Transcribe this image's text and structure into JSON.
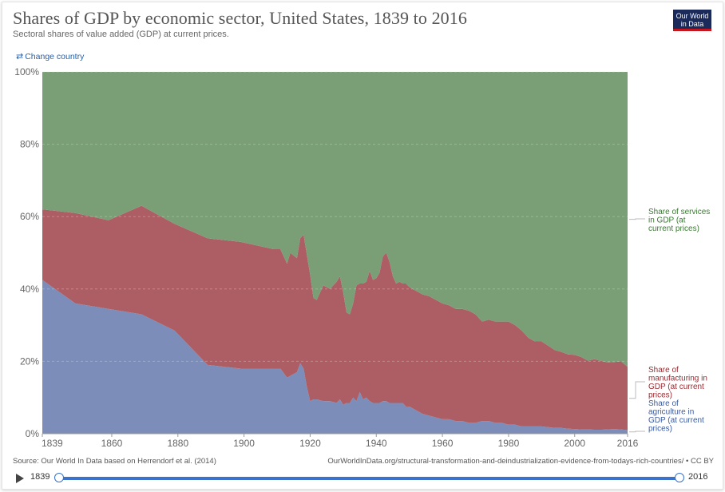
{
  "header": {
    "title": "Shares of GDP by economic sector, United States, 1839 to 2016",
    "subtitle": "Sectoral shares of value added (GDP) at current prices.",
    "logo_line1": "Our World",
    "logo_line2": "in Data",
    "change_country": "Change country"
  },
  "footer": {
    "source": "Source: Our World In Data based on Herrendorf et al. (2014)",
    "url": "OurWorldInData.org/structural-transformation-and-deindustrialization-evidence-from-todays-rich-countries/ • CC BY"
  },
  "timeline": {
    "start": "1839",
    "end": "2016"
  },
  "colors": {
    "agriculture": "#7b8db8",
    "manufacturing": "#ac5e64",
    "services": "#7a9e75",
    "services_label": "#3a7a32",
    "manufacturing_label": "#9a2a30",
    "agriculture_label": "#3a5aa0"
  },
  "chart_data": {
    "type": "area",
    "stacked": true,
    "xlim": [
      1839,
      2016
    ],
    "ylim": [
      0,
      100
    ],
    "y_ticks": [
      "0%",
      "20%",
      "40%",
      "60%",
      "80%",
      "100%"
    ],
    "x_ticks": [
      "1839",
      "1860",
      "1880",
      "1900",
      "1920",
      "1940",
      "1960",
      "1980",
      "2000",
      "2016"
    ],
    "grid": "horizontal dashed",
    "legend": "right, inline labels",
    "x": [
      1839,
      1849,
      1859,
      1869,
      1879,
      1889,
      1899,
      1909,
      1911,
      1913,
      1914,
      1916,
      1917,
      1918,
      1919,
      1920,
      1921,
      1922,
      1924,
      1926,
      1928,
      1929,
      1930,
      1931,
      1932,
      1933,
      1934,
      1935,
      1936,
      1937,
      1938,
      1939,
      1940,
      1941,
      1942,
      1943,
      1944,
      1945,
      1946,
      1947,
      1948,
      1949,
      1950,
      1952,
      1954,
      1956,
      1958,
      1960,
      1962,
      1964,
      1966,
      1968,
      1970,
      1972,
      1974,
      1976,
      1978,
      1980,
      1982,
      1984,
      1986,
      1988,
      1990,
      1992,
      1994,
      1996,
      1998,
      2000,
      2002,
      2004,
      2006,
      2008,
      2010,
      2012,
      2014,
      2016
    ],
    "series": [
      {
        "name": "Share of agriculture in GDP (at current prices)",
        "values": [
          42.5,
          36,
          34.5,
          33,
          28.5,
          19,
          18,
          18,
          18,
          15.5,
          16,
          17,
          19.5,
          18,
          13,
          9,
          9.5,
          9.5,
          9,
          9,
          8.5,
          9.5,
          8,
          8.5,
          8.5,
          10,
          9,
          11.5,
          9.5,
          10,
          9,
          8.5,
          8.5,
          8.5,
          9,
          9,
          8.5,
          8.5,
          8.5,
          8.5,
          8.5,
          7.5,
          7.5,
          6.5,
          5.5,
          5,
          4.5,
          4,
          4,
          3.5,
          3.5,
          3,
          3,
          3.5,
          3.5,
          3,
          3,
          2.5,
          2.5,
          2,
          2,
          2,
          2,
          1.8,
          1.6,
          1.6,
          1.4,
          1.3,
          1.2,
          1.2,
          1.1,
          1.1,
          1.2,
          1.3,
          1.2,
          1
        ]
      },
      {
        "name": "Share of manufacturing in GDP (at current prices)",
        "values": [
          19.5,
          25,
          24.5,
          30,
          29.5,
          35,
          35,
          33,
          33,
          31.5,
          34,
          31.5,
          34.5,
          37,
          36.5,
          35,
          28,
          27.5,
          32,
          31,
          33.5,
          34,
          31,
          25,
          24.5,
          26,
          32,
          30,
          32,
          32,
          36,
          34,
          34.5,
          36,
          40,
          41,
          39,
          35,
          33,
          33.5,
          33,
          34,
          33,
          33,
          33,
          33,
          32.5,
          32,
          31.5,
          31,
          31,
          31,
          30,
          27.5,
          28,
          28,
          28,
          28.5,
          27.5,
          26.5,
          24.5,
          23.5,
          23.5,
          22.5,
          21.5,
          21,
          20.5,
          20.5,
          20,
          19,
          19.5,
          19,
          18.5,
          18.5,
          18.8,
          17.5
        ]
      },
      {
        "name": "Share of services in GDP (at current prices)",
        "values": [
          38,
          39,
          41,
          37,
          42,
          46,
          47,
          49,
          49,
          53,
          50,
          51.5,
          46,
          45,
          50.5,
          56,
          62.5,
          63,
          59,
          60,
          58,
          56.5,
          61,
          66.5,
          67,
          64,
          59,
          58.5,
          58.5,
          58,
          55,
          57.5,
          57,
          55.5,
          51,
          50,
          52.5,
          56.5,
          58.5,
          58,
          58.5,
          58.5,
          59.5,
          60.5,
          61.5,
          62,
          63,
          64,
          64.5,
          65.5,
          65.5,
          66,
          67,
          69,
          68.5,
          69,
          69,
          69,
          70,
          71.5,
          73.5,
          74.5,
          74.5,
          75.7,
          76.9,
          77.4,
          78.1,
          78.2,
          78.8,
          79.8,
          79.4,
          79.9,
          80.3,
          80.2,
          80,
          81.5
        ]
      }
    ]
  }
}
